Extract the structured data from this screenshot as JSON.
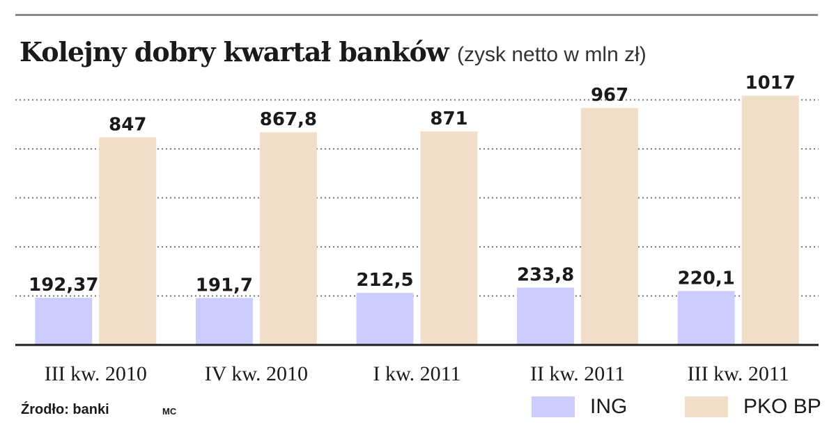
{
  "title": "Kolejny dobry kwartał banków",
  "subtitle": "(zysk netto  w mln zł)",
  "source": "Źrodło: banki",
  "source_tag": "MC",
  "colors": {
    "ING": "#ccccff",
    "PKO BP": "#f1dec8"
  },
  "chart_data": {
    "type": "bar",
    "categories": [
      "III kw. 2010",
      "IV kw. 2010",
      "I kw. 2011",
      "II kw. 2011",
      "III kw. 2011"
    ],
    "series": [
      {
        "name": "ING",
        "values": [
          192.37,
          191.7,
          212.5,
          233.8,
          220.1
        ],
        "labels": [
          "192,37",
          "191,7",
          "212,5",
          "233,8",
          "220,1"
        ]
      },
      {
        "name": "PKO BP",
        "values": [
          847,
          867.8,
          871,
          967,
          1017
        ],
        "labels": [
          "847",
          "867,8",
          "871",
          "967",
          "1017"
        ]
      }
    ],
    "ylim": [
      0,
      1000
    ],
    "grid": true,
    "legend": "bottom-right"
  }
}
